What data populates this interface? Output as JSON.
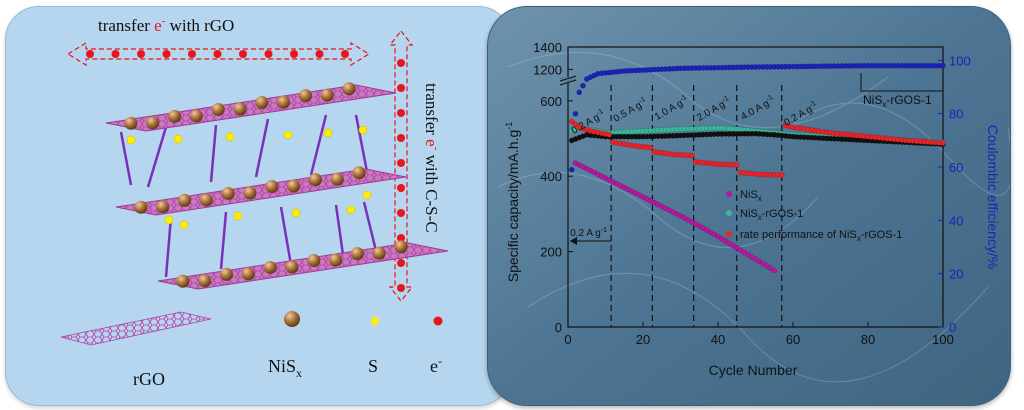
{
  "schematic": {
    "top_arrow": {
      "prefix": "transfer ",
      "carrier": "e",
      "sup": "-",
      "suffix": " with rGO"
    },
    "side_arrow": {
      "prefix": "transfer ",
      "carrier": "e",
      "sup": "-",
      "suffix": " with C-S-C"
    },
    "legend": [
      {
        "label": "rGO",
        "icon": "rgo-sheet-icon"
      },
      {
        "label": "NiS",
        "sub": "x",
        "icon": "nis-sphere-icon",
        "color": "#8b5a2b"
      },
      {
        "label": "S",
        "icon": "sulfur-dot-icon",
        "color": "#ffee00"
      },
      {
        "label": "e",
        "sup": "-",
        "icon": "electron-dot-icon",
        "color": "#e8151c"
      }
    ]
  },
  "chart_data": {
    "type": "scatter",
    "xlabel": "Cycle Number",
    "ylabel": "Specific capacity/mA.h.g",
    "ylabel_sup": "-1",
    "y2label": "Coulombic efficiency/%",
    "xlim": [
      0,
      100
    ],
    "xticks": [
      0,
      20,
      40,
      60,
      80,
      100
    ],
    "ylim_lower": [
      0,
      650
    ],
    "yticks_lower": [
      0,
      200,
      400,
      600
    ],
    "ylim_upper": [
      1150,
      1400
    ],
    "yticks_upper": [
      1200,
      1400
    ],
    "y2lim": [
      0,
      105
    ],
    "y2ticks": [
      0,
      20,
      40,
      60,
      80,
      100
    ],
    "axis_break": true,
    "colors": {
      "NiSx": "#b5179e",
      "NiSx-rGOS-1": "#3ab89a",
      "rate": "#e8232a",
      "ce": "#1b23b8",
      "black_series": "#111111"
    },
    "rate_boundaries": [
      11.5,
      22.5,
      33.5,
      45,
      57
    ],
    "rate_labels": [
      "0.2 A g",
      "0.5 A g",
      "1.0 A g",
      "2.0 A g",
      "4.0 A g",
      "0.2 A g"
    ],
    "rate_label_sup": "-1",
    "nis_label": "0.2 A g",
    "nis_label_sup": "-1",
    "legend": [
      {
        "name": "NiS",
        "sub": "x",
        "color": "#b5179e"
      },
      {
        "name": "NiS",
        "sub": "x",
        "suffix": "-rGOS-1",
        "color": "#3ab89a"
      },
      {
        "name": "rate performance of NiS",
        "sub": "x",
        "suffix": "-rGOS-1",
        "color": "#e8232a"
      }
    ],
    "ce_label": {
      "name": "NiS",
      "sub": "x",
      "suffix": "-rGOS-1"
    },
    "series": [
      {
        "name": "NiSx",
        "color": "#b5179e",
        "points": [
          [
            2,
            435
          ],
          [
            5,
            420
          ],
          [
            10,
            395
          ],
          [
            15,
            370
          ],
          [
            20,
            345
          ],
          [
            25,
            320
          ],
          [
            30,
            295
          ],
          [
            35,
            268
          ],
          [
            40,
            240
          ],
          [
            45,
            210
          ],
          [
            50,
            180
          ],
          [
            55,
            150
          ]
        ]
      },
      {
        "name": "NiSx-rGOS-1",
        "color": "#3ab89a",
        "points": [
          [
            1,
            520
          ],
          [
            3,
            530
          ],
          [
            5,
            525
          ],
          [
            10,
            515
          ],
          [
            20,
            520
          ],
          [
            30,
            525
          ],
          [
            40,
            528
          ],
          [
            45,
            525
          ],
          [
            50,
            520
          ],
          [
            55,
            515
          ],
          [
            60,
            510
          ],
          [
            70,
            505
          ],
          [
            80,
            500
          ],
          [
            90,
            495
          ],
          [
            100,
            490
          ]
        ]
      },
      {
        "name": "black",
        "color": "#111111",
        "points": [
          [
            1,
            495
          ],
          [
            5,
            510
          ],
          [
            10,
            505
          ],
          [
            20,
            505
          ],
          [
            30,
            508
          ],
          [
            40,
            512
          ],
          [
            50,
            513
          ],
          [
            55,
            510
          ],
          [
            60,
            505
          ],
          [
            70,
            500
          ],
          [
            80,
            495
          ],
          [
            90,
            490
          ],
          [
            100,
            485
          ]
        ]
      },
      {
        "name": "rate performance of NiSx-rGOS-1",
        "color": "#e8232a",
        "points": [
          [
            1,
            545
          ],
          [
            3,
            530
          ],
          [
            6,
            520
          ],
          [
            11,
            510
          ],
          [
            12,
            490
          ],
          [
            18,
            480
          ],
          [
            22,
            476
          ],
          [
            23,
            465
          ],
          [
            28,
            458
          ],
          [
            33,
            455
          ],
          [
            34,
            438
          ],
          [
            40,
            432
          ],
          [
            45,
            430
          ],
          [
            46,
            410
          ],
          [
            51,
            405
          ],
          [
            57,
            403
          ],
          [
            58,
            535
          ],
          [
            60,
            530
          ],
          [
            70,
            515
          ],
          [
            80,
            505
          ],
          [
            90,
            495
          ],
          [
            100,
            488
          ]
        ]
      },
      {
        "name": "CE",
        "color": "#1b23b8",
        "axis": "y2",
        "points": [
          [
            1,
            59
          ],
          [
            2,
            80
          ],
          [
            3,
            88
          ],
          [
            5,
            93
          ],
          [
            8,
            95
          ],
          [
            15,
            96
          ],
          [
            30,
            97
          ],
          [
            50,
            97.5
          ],
          [
            80,
            98
          ],
          [
            100,
            98
          ]
        ]
      }
    ]
  }
}
